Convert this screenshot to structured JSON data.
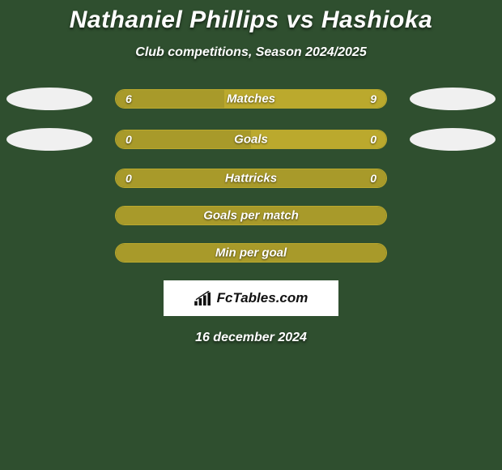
{
  "colors": {
    "page_bg": "#2f4f2f",
    "title_color": "#ffffff",
    "subtitle_color": "#ffffff",
    "bar_color_left": "#a89a2a",
    "bar_color_right": "#bba92d",
    "bar_color_full": "#a89a2a",
    "bar_border": "#bba92d",
    "ellipse_left": "#f0f0f0",
    "ellipse_right": "#f0f0f0",
    "bar_text": "#ffffff",
    "brand_bg": "#ffffff",
    "brand_text": "#111111"
  },
  "title": "Nathaniel Phillips vs Hashioka",
  "subtitle": "Club competitions, Season 2024/2025",
  "rows": [
    {
      "label": "Matches",
      "left_value": "6",
      "right_value": "9",
      "left_pct": 40,
      "right_pct": 60,
      "show_left_ellipse": true,
      "show_right_ellipse": true
    },
    {
      "label": "Goals",
      "left_value": "0",
      "right_value": "0",
      "left_pct": 50,
      "right_pct": 50,
      "show_left_ellipse": true,
      "show_right_ellipse": true
    },
    {
      "label": "Hattricks",
      "left_value": "0",
      "right_value": "0",
      "left_pct": 100,
      "right_pct": 0,
      "show_left_ellipse": false,
      "show_right_ellipse": false
    },
    {
      "label": "Goals per match",
      "left_value": "",
      "right_value": "",
      "left_pct": 100,
      "right_pct": 0,
      "show_left_ellipse": false,
      "show_right_ellipse": false
    },
    {
      "label": "Min per goal",
      "left_value": "",
      "right_value": "",
      "left_pct": 100,
      "right_pct": 0,
      "show_left_ellipse": false,
      "show_right_ellipse": false
    }
  ],
  "brand": "FcTables.com",
  "date": "16 december 2024"
}
